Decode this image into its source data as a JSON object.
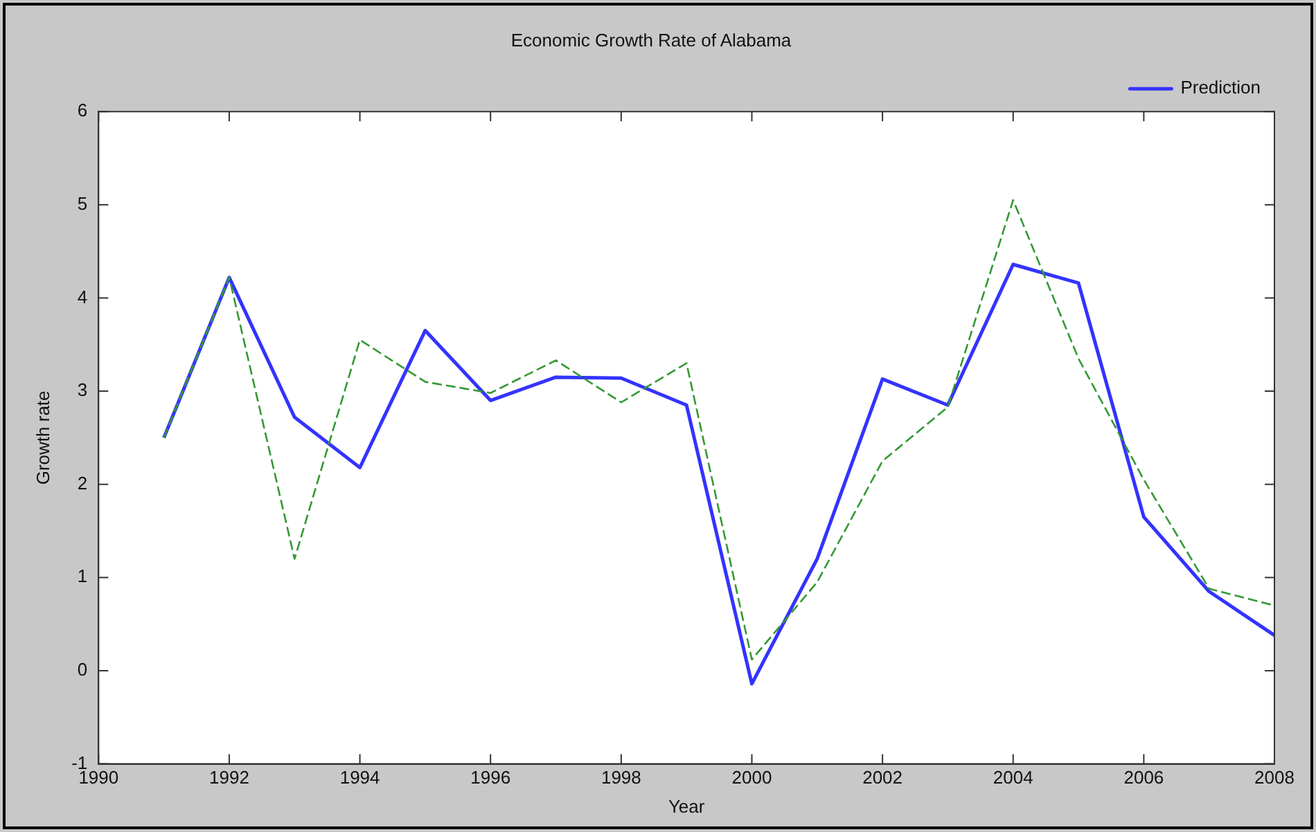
{
  "chart_data": {
    "type": "line",
    "title": "Economic Growth Rate of Alabama",
    "xlabel": "Year",
    "ylabel": "Growth rate",
    "x": [
      1991,
      1992,
      1993,
      1994,
      1995,
      1996,
      1997,
      1998,
      1999,
      2000,
      2001,
      2002,
      2003,
      2004,
      2005,
      2006,
      2007,
      2008
    ],
    "series": [
      {
        "name": "Prediction",
        "color": "#3333ff",
        "line_style": "solid",
        "values": [
          2.5,
          4.22,
          2.72,
          2.18,
          3.65,
          2.9,
          3.15,
          3.14,
          2.85,
          -0.14,
          1.2,
          3.13,
          2.85,
          4.36,
          4.16,
          1.65,
          0.85,
          0.38
        ]
      },
      {
        "color": "#339933",
        "line_style": "dashed",
        "values": [
          2.5,
          4.22,
          1.2,
          3.55,
          3.1,
          2.98,
          3.33,
          2.88,
          3.3,
          0.12,
          0.95,
          2.25,
          2.83,
          5.05,
          3.35,
          2.05,
          0.88,
          0.7
        ]
      }
    ],
    "xlim": [
      1990,
      2008
    ],
    "xticks": [
      1990,
      1992,
      1994,
      1996,
      1998,
      2000,
      2002,
      2004,
      2006,
      2008
    ],
    "ylim": [
      -1,
      6
    ],
    "yticks": [
      -1,
      0,
      1,
      2,
      3,
      4,
      5,
      6
    ],
    "grid": false,
    "legend": "top right",
    "marker": "none"
  }
}
